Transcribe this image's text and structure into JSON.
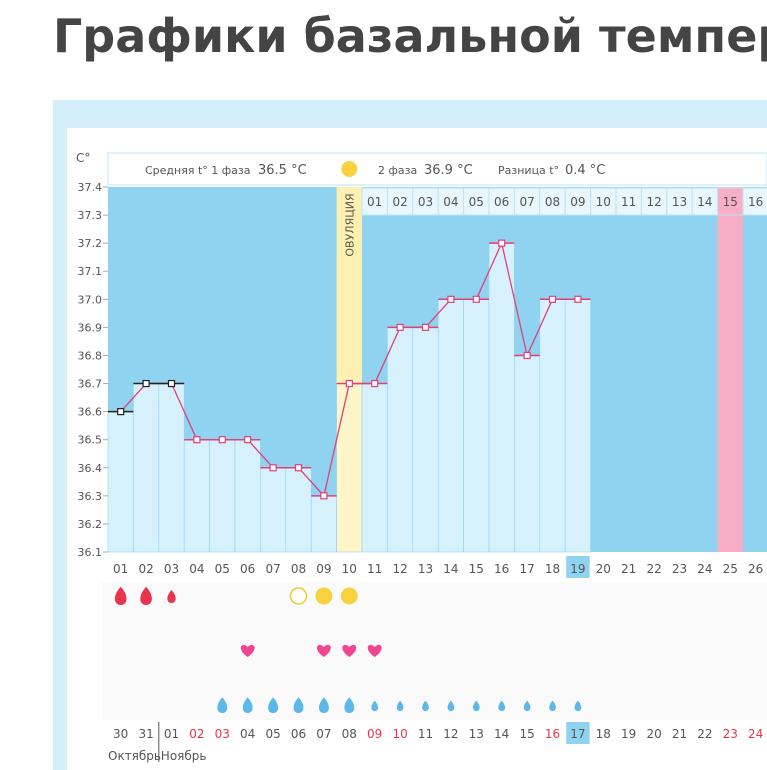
{
  "page_title": "Графики базальной температуры",
  "chart_data": {
    "type": "line",
    "y_unit": "C°",
    "phase1_label": "Средняя t° 1 фаза",
    "phase1_value": "36.5 °C",
    "phase2_label": "2 фаза",
    "phase2_value": "36.9 °C",
    "diff_label": "Разница t°",
    "diff_value": "0.4 °C",
    "ovulation_label": "ОВУЛЯЦИЯ",
    "x": [
      "01",
      "02",
      "03",
      "04",
      "05",
      "06",
      "07",
      "08",
      "09",
      "10",
      "11",
      "12",
      "13",
      "14",
      "15",
      "16",
      "17",
      "18",
      "19",
      "20",
      "21",
      "22",
      "23",
      "24",
      "25",
      "26"
    ],
    "phase2_days": [
      "01",
      "02",
      "03",
      "04",
      "05",
      "06",
      "07",
      "08",
      "09",
      "10",
      "11",
      "12",
      "13",
      "14",
      "15",
      "16"
    ],
    "dates": [
      "30",
      "31",
      "01",
      "02",
      "03",
      "04",
      "05",
      "06",
      "07",
      "08",
      "09",
      "10",
      "11",
      "12",
      "13",
      "14",
      "15",
      "16",
      "17",
      "18",
      "19",
      "20",
      "21",
      "22",
      "23",
      "24"
    ],
    "months": [
      "Октябрь",
      "Ноябрь"
    ],
    "series": [
      {
        "color": "#e0407a",
        "values": [
          36.6,
          36.7,
          36.7,
          36.5,
          36.5,
          36.5,
          36.4,
          36.4,
          36.3,
          36.7,
          36.7,
          36.9,
          36.9,
          37.0,
          37.0,
          37.2,
          36.8,
          37.0,
          37.0,
          null,
          null,
          null,
          null,
          null,
          null,
          null
        ]
      }
    ],
    "ylim": [
      36.1,
      37.4
    ],
    "yticks": [
      37.4,
      37.3,
      37.2,
      37.1,
      {
        "value": 37,
        "label": "37.0"
      },
      36.9,
      36.8,
      36.7,
      36.6,
      36.5,
      36.4,
      36.3,
      36.2,
      36.1
    ]
  }
}
